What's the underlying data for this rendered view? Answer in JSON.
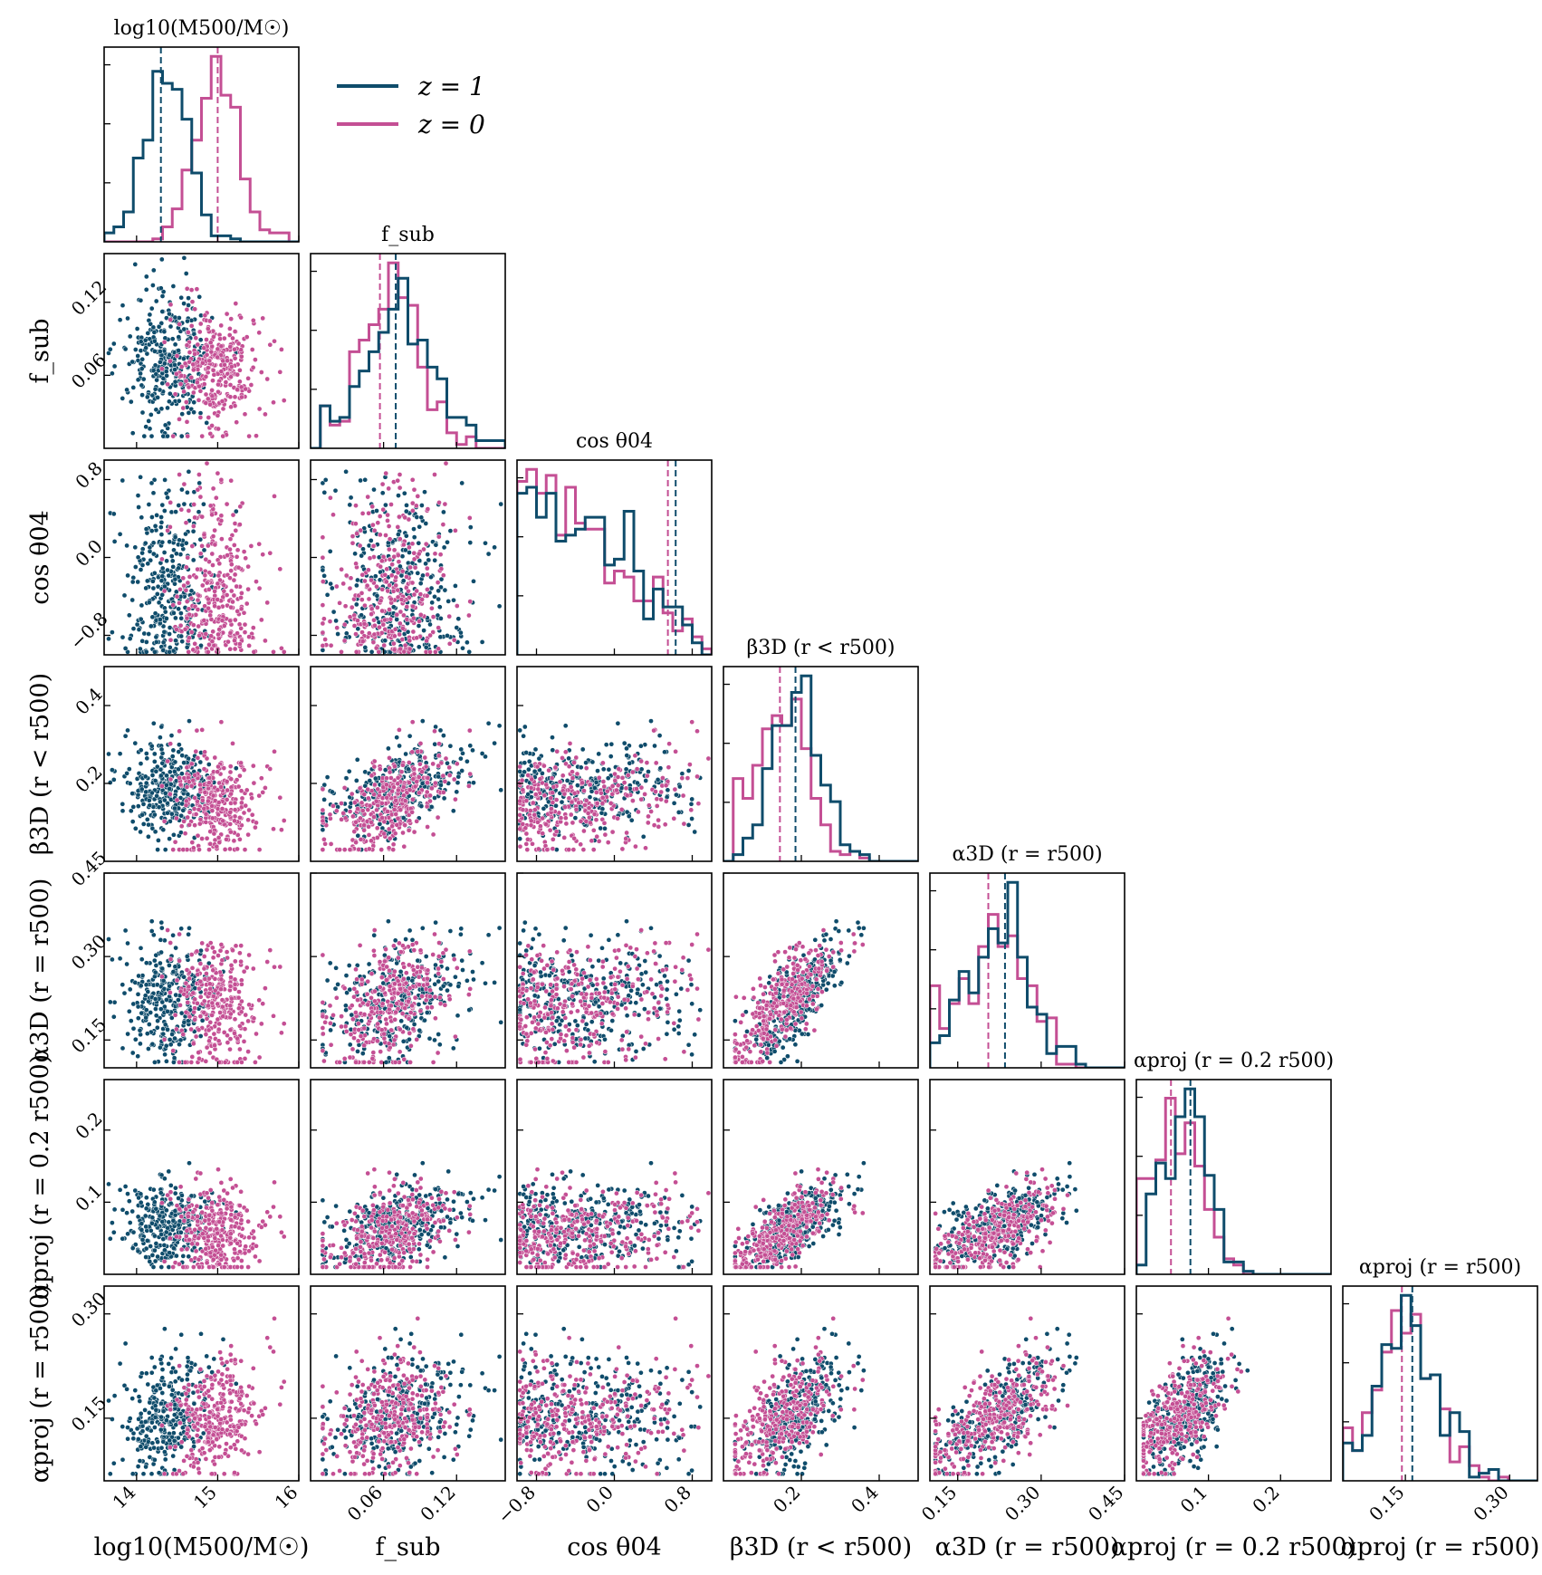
{
  "chart_data": {
    "type": "corner",
    "title": "",
    "colors": {
      "z1": "#0f4c6b",
      "z0": "#c44f94"
    },
    "legend": {
      "position": "top-left",
      "entries": [
        {
          "key": "z1",
          "label": "z = 1"
        },
        {
          "key": "z0",
          "label": "z = 0"
        }
      ]
    },
    "params": [
      {
        "name": "logM500",
        "label": "log10(M500/M☉)",
        "range": [
          13.6,
          16.0
        ],
        "ticks": [
          14,
          15,
          16
        ],
        "tick_labels": [
          "14",
          "15",
          "16"
        ],
        "z1": {
          "mean": 14.35,
          "sd": 0.28,
          "median": 14.3
        },
        "z0": {
          "mean": 15.0,
          "sd": 0.28,
          "median": 15.0
        }
      },
      {
        "name": "fsub",
        "label": "f_sub",
        "range": [
          0.0,
          0.16
        ],
        "ticks": [
          0.06,
          0.12
        ],
        "tick_labels": [
          "0.06",
          "0.12"
        ],
        "z1": {
          "mean": 0.075,
          "sd": 0.033,
          "median": 0.07
        },
        "z0": {
          "mean": 0.062,
          "sd": 0.028,
          "median": 0.057
        }
      },
      {
        "name": "costheta04",
        "label": "cos θ04",
        "range": [
          -1.0,
          1.0
        ],
        "ticks": [
          -0.8,
          0.0,
          0.8
        ],
        "tick_labels": [
          "−0.8",
          "0.0",
          "0.8"
        ],
        "z1": {
          "median": 0.63
        },
        "z0": {
          "median": 0.55
        }
      },
      {
        "name": "beta3D",
        "label": "β3D (r < r500)",
        "range": [
          0.0,
          0.5
        ],
        "ticks": [
          0.2,
          0.4
        ],
        "tick_labels": [
          "0.2",
          "0.4"
        ],
        "z1": {
          "mean": 0.2,
          "sd": 0.07,
          "median": 0.185
        },
        "z0": {
          "mean": 0.155,
          "sd": 0.075,
          "median": 0.145
        }
      },
      {
        "name": "alpha3D",
        "label": "α3D (r = r500)",
        "range": [
          0.1,
          0.45
        ],
        "ticks": [
          0.15,
          0.3,
          0.45
        ],
        "tick_labels": [
          "0.15",
          "0.30",
          "0.45"
        ],
        "z1": {
          "mean": 0.23,
          "sd": 0.06,
          "median": 0.235
        },
        "z0": {
          "mean": 0.215,
          "sd": 0.065,
          "median": 0.205
        }
      },
      {
        "name": "alphaproj02",
        "label": "αproj (r = 0.2 r500)",
        "range": [
          0.0,
          0.27
        ],
        "ticks": [
          0.1,
          0.2
        ],
        "tick_labels": [
          "0.1",
          "0.2"
        ],
        "z1": {
          "mean": 0.072,
          "sd": 0.03,
          "median": 0.075
        },
        "z0": {
          "mean": 0.058,
          "sd": 0.035,
          "median": 0.048
        }
      },
      {
        "name": "alphaproj1",
        "label": "αproj (r = r500)",
        "range": [
          0.06,
          0.34
        ],
        "ticks": [
          0.15,
          0.3
        ],
        "tick_labels": [
          "0.15",
          "0.30"
        ],
        "z1": {
          "mean": 0.16,
          "sd": 0.045,
          "median": 0.16
        },
        "z0": {
          "mean": 0.15,
          "sd": 0.045,
          "median": 0.145
        }
      }
    ],
    "y_tick_values": {
      "fsub": [
        0.06,
        0.12
      ],
      "fsub_labels": [
        "0.06",
        "0.12"
      ],
      "costheta04": [
        -0.8,
        0.0,
        0.8
      ],
      "costheta04_labels": [
        "−0.8",
        "0.0",
        "0.8"
      ],
      "beta3D": [
        0.2,
        0.4
      ],
      "beta3D_labels": [
        "0.2",
        "0.4"
      ],
      "alpha3D": [
        0.15,
        0.3,
        0.45
      ],
      "alpha3D_labels": [
        "0.15",
        "0.30",
        "0.45"
      ],
      "alphaproj02": [
        0.1,
        0.2
      ],
      "alphaproj02_labels": [
        "0.1",
        "0.2"
      ],
      "alphaproj1": [
        0.15,
        0.3
      ],
      "alphaproj1_labels": [
        "0.15",
        "0.30"
      ]
    },
    "correlations": {
      "fsub-beta3D": 0.55,
      "beta3D-alpha3D": 0.8,
      "beta3D-alphaproj02": 0.75,
      "alpha3D-alphaproj02": 0.45,
      "alpha3D-alphaproj1": 0.75,
      "alphaproj02-alphaproj1": 0.6,
      "beta3D-alphaproj1": 0.65,
      "fsub-alpha3D": 0.3,
      "fsub-alphaproj02": 0.35,
      "fsub-alphaproj1": 0.2,
      "logM500-alphaproj1": 0.4,
      "costheta04-beta3D": 0.3
    },
    "samples_per_redshift": 320
  }
}
